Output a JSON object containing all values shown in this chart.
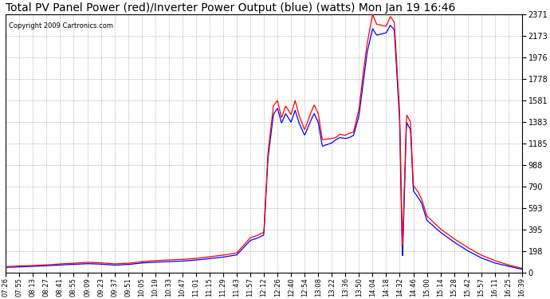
{
  "title": "Total PV Panel Power (red)/Inverter Power Output (blue) (watts) Mon Jan 19 16:46",
  "copyright": "Copyright 2009 Cartronics.com",
  "yticks": [
    0.0,
    197.6,
    395.1,
    592.7,
    790.3,
    987.8,
    1185.4,
    1383.0,
    1580.6,
    1778.1,
    1975.7,
    2173.3,
    2370.8
  ],
  "xtick_labels": [
    "07:26",
    "07:55",
    "08:13",
    "08:27",
    "08:41",
    "08:55",
    "09:09",
    "09:23",
    "09:37",
    "09:51",
    "10:05",
    "10:19",
    "10:33",
    "10:47",
    "11:01",
    "11:15",
    "11:29",
    "11:43",
    "11:57",
    "12:12",
    "12:26",
    "12:40",
    "12:54",
    "13:08",
    "13:22",
    "13:36",
    "13:50",
    "14:04",
    "14:18",
    "14:32",
    "14:46",
    "15:00",
    "15:14",
    "15:28",
    "15:42",
    "15:57",
    "16:11",
    "16:25",
    "16:39"
  ],
  "bg_color": "#ffffff",
  "plot_bg_color": "#ffffff",
  "grid_color": "#aaaaaa",
  "red_color": "#ff0000",
  "blue_color": "#0000ff",
  "title_fontsize": 10,
  "ymax": 2370.8,
  "ymin": 0.0,
  "red_waypoints_x": [
    0,
    1,
    2,
    3,
    4,
    5,
    6,
    7,
    8,
    9,
    10,
    11,
    12,
    13,
    14,
    15,
    16,
    17,
    18,
    18.5,
    19.0,
    19.3,
    19.7,
    20.0,
    20.3,
    20.6,
    21.0,
    21.3,
    21.6,
    22.0,
    22.4,
    22.7,
    23.0,
    23.3,
    24.0,
    24.3,
    24.6,
    25.0,
    25.3,
    25.6,
    26.0,
    26.3,
    26.6,
    27.0,
    27.3,
    28.0,
    28.3,
    28.6,
    29.0,
    29.1,
    29.2,
    29.5,
    29.8,
    30.0,
    30.3,
    30.6,
    31.0,
    32.0,
    33.0,
    34.0,
    35.0,
    36.0,
    37.0,
    38.0
  ],
  "red_waypoints_y": [
    55,
    60,
    65,
    70,
    80,
    85,
    95,
    90,
    80,
    85,
    100,
    110,
    115,
    120,
    130,
    145,
    160,
    180,
    320,
    340,
    370,
    1100,
    1530,
    1580,
    1420,
    1530,
    1450,
    1580,
    1440,
    1310,
    1450,
    1540,
    1460,
    1220,
    1230,
    1240,
    1270,
    1260,
    1280,
    1290,
    1500,
    1820,
    2100,
    2370,
    2280,
    2260,
    2350,
    2300,
    1450,
    850,
    200,
    1450,
    1380,
    800,
    750,
    680,
    520,
    400,
    310,
    230,
    160,
    110,
    70,
    40
  ],
  "blue_waypoints_x": [
    0,
    1,
    2,
    3,
    4,
    5,
    6,
    7,
    8,
    9,
    10,
    11,
    12,
    13,
    14,
    15,
    16,
    17,
    18,
    18.5,
    19.0,
    19.3,
    19.7,
    20.0,
    20.3,
    20.6,
    21.0,
    21.3,
    21.6,
    22.0,
    22.4,
    22.7,
    23.0,
    23.3,
    24.0,
    24.3,
    24.6,
    25.0,
    25.3,
    25.6,
    26.0,
    26.3,
    26.6,
    27.0,
    27.3,
    28.0,
    28.3,
    28.6,
    29.0,
    29.1,
    29.2,
    29.5,
    29.8,
    30.0,
    30.3,
    30.6,
    31.0,
    32.0,
    33.0,
    34.0,
    35.0,
    36.0,
    37.0,
    38.0
  ],
  "blue_waypoints_y": [
    48,
    52,
    57,
    62,
    70,
    75,
    82,
    78,
    68,
    74,
    88,
    96,
    100,
    105,
    115,
    128,
    142,
    162,
    295,
    315,
    345,
    1050,
    1450,
    1510,
    1370,
    1460,
    1380,
    1490,
    1370,
    1260,
    1380,
    1460,
    1380,
    1160,
    1190,
    1220,
    1240,
    1230,
    1240,
    1260,
    1440,
    1730,
    2020,
    2240,
    2180,
    2200,
    2270,
    2230,
    1380,
    700,
    100,
    1380,
    1310,
    750,
    700,
    640,
    480,
    370,
    280,
    200,
    135,
    88,
    58,
    30
  ]
}
